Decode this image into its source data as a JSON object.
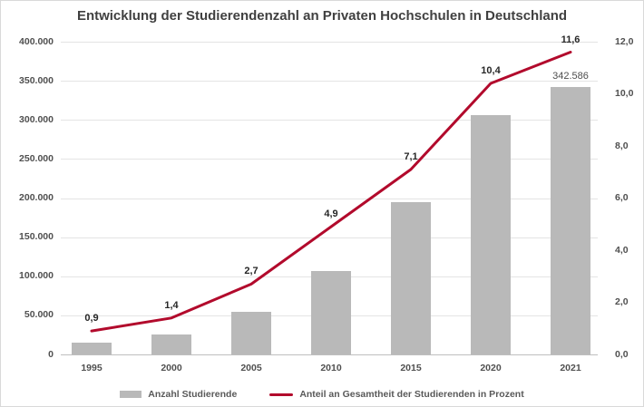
{
  "colors": {
    "bar": "#b9b9b9",
    "line": "#b20a2c",
    "grid": "#e4e4e4",
    "axis_line": "#bfbfbf"
  },
  "chart_data": {
    "type": "bar+line combo",
    "title": "Entwicklung der Studierendenzahl an Privaten Hochschulen in Deutschland",
    "categories": [
      "1995",
      "2000",
      "2005",
      "2010",
      "2015",
      "2020",
      "2021"
    ],
    "series": [
      {
        "name": "Anzahl Studierende",
        "type": "bar",
        "axis": "left",
        "values": [
          15000,
          25000,
          54000,
          107000,
          195000,
          306000,
          342586
        ],
        "value_labels": [
          "",
          "",
          "",
          "",
          "",
          "",
          "342.586"
        ]
      },
      {
        "name": "Anteil an Gesamtheit der Studierenden in Prozent",
        "type": "line",
        "axis": "right",
        "values": [
          0.9,
          1.4,
          2.7,
          4.9,
          7.1,
          10.4,
          11.6
        ],
        "value_labels": [
          "0,9",
          "1,4",
          "2,7",
          "4,9",
          "7,1",
          "10,4",
          "11,6"
        ]
      }
    ],
    "left_axis": {
      "min": 0,
      "max": 400000,
      "tick_labels": [
        "0",
        "50.000",
        "100.000",
        "150.000",
        "200.000",
        "250.000",
        "300.000",
        "350.000",
        "400.000"
      ]
    },
    "right_axis": {
      "min": 0,
      "max": 12,
      "tick_labels": [
        "0,0",
        "2,0",
        "4,0",
        "6,0",
        "8,0",
        "10,0",
        "12,0"
      ]
    },
    "grid": "horizontal",
    "legend_position": "bottom-center"
  }
}
